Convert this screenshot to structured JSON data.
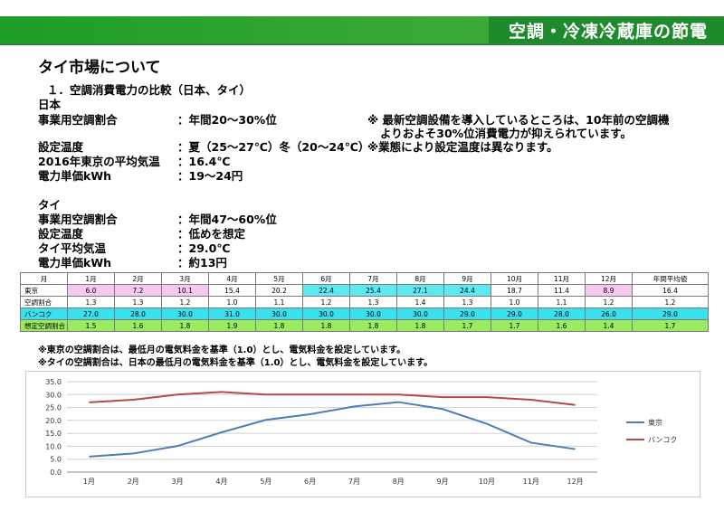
{
  "header": {
    "title": "空調・冷凍冷蔵庫の節電"
  },
  "heading": "タイ市場について",
  "section": "１．空調消費電力の比較（日本、タイ）",
  "japan": {
    "label": "日本",
    "rows": [
      {
        "label": "事業用空調割合",
        "value": "：年間20～30%位"
      },
      {
        "label": "設定温度",
        "value": "：夏（25～27℃）冬（20～24℃）"
      },
      {
        "label": "2016年東京の平均気温",
        "value": "：16.4℃"
      },
      {
        "label": "電力単価kWh",
        "value": "：19～24円"
      }
    ],
    "note1": "※ 最新空調設備を導入しているところは、10年前の空調機",
    "note1b": "よりおよそ30%位消費電力が抑えられています。",
    "note2": "※業態により設定温度は異なります。"
  },
  "thai": {
    "label": "タイ",
    "rows": [
      {
        "label": "事業用空調割合",
        "value": "：年間47～60%位"
      },
      {
        "label": "設定温度",
        "value": "：低めを想定"
      },
      {
        "label": "タイ平均気温",
        "value": "：29.0℃"
      },
      {
        "label": "電力単価kWh",
        "value": "：約13円"
      }
    ]
  },
  "table": {
    "header": [
      "月",
      "1月",
      "2月",
      "3月",
      "4月",
      "5月",
      "6月",
      "7月",
      "8月",
      "9月",
      "10月",
      "11月",
      "12月",
      "年間平均値"
    ],
    "rows": [
      {
        "label": "東京",
        "cells": [
          "6.0",
          "7.2",
          "10.1",
          "15.4",
          "20.2",
          "22.4",
          "25.4",
          "27.1",
          "24.4",
          "18.7",
          "11.4",
          "8.9",
          "16.4"
        ]
      },
      {
        "label": "空調割合",
        "cells": [
          "1.3",
          "1.3",
          "1.2",
          "1.0",
          "1.1",
          "1.2",
          "1.3",
          "1.4",
          "1.3",
          "1.0",
          "1.1",
          "1.2",
          "1.2"
        ]
      },
      {
        "label": "バンコク",
        "cells": [
          "27.0",
          "28.0",
          "30.0",
          "31.0",
          "30.0",
          "30.0",
          "30.0",
          "30.0",
          "29.0",
          "29.0",
          "28.0",
          "26.0",
          "29.0"
        ]
      },
      {
        "label": "想定空調割合",
        "cells": [
          "1.5",
          "1.6",
          "1.8",
          "1.9",
          "1.8",
          "1.8",
          "1.8",
          "1.8",
          "1.7",
          "1.7",
          "1.6",
          "1.4",
          "1.7"
        ]
      }
    ]
  },
  "notes": [
    "※東京の空調割合は、最低月の電気料金を基準（1.0）とし、電気料金を設定しています。",
    "※タイの空調割合は、日本の最低月の電気料金を基準（1.0）とし、電気料金を設定しています。"
  ],
  "chart_data": {
    "type": "line",
    "categories": [
      "1月",
      "2月",
      "3月",
      "4月",
      "5月",
      "6月",
      "7月",
      "8月",
      "9月",
      "10月",
      "11月",
      "12月"
    ],
    "ylim": [
      0,
      35
    ],
    "yticks": [
      "0.0",
      "5.0",
      "10.0",
      "15.0",
      "20.0",
      "25.0",
      "30.0",
      "35.0"
    ],
    "grid": true,
    "legend_position": "right",
    "series": [
      {
        "name": "東京",
        "color": "#4f7db8",
        "values": [
          6.0,
          7.2,
          10.1,
          15.4,
          20.2,
          22.4,
          25.4,
          27.1,
          24.4,
          18.7,
          11.4,
          8.9
        ]
      },
      {
        "name": "バンコク",
        "color": "#b54a47",
        "values": [
          27.0,
          28.0,
          30.0,
          31.0,
          30.0,
          30.0,
          30.0,
          30.0,
          29.0,
          29.0,
          28.0,
          26.0
        ]
      }
    ]
  }
}
